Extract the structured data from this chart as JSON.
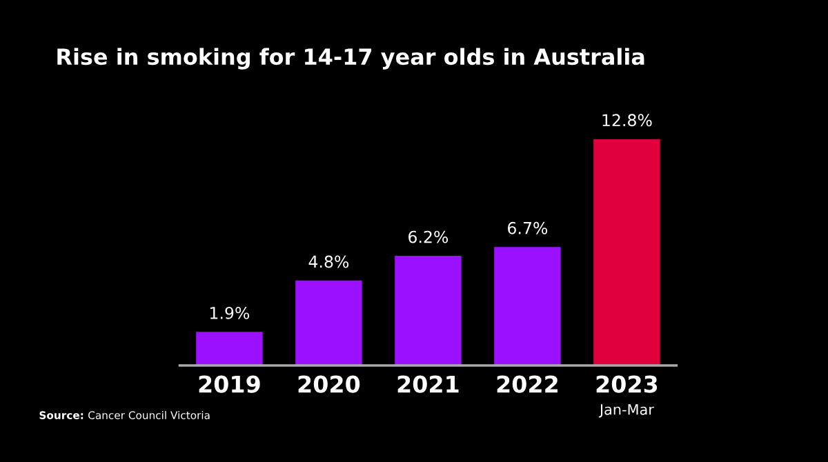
{
  "chart_data": {
    "type": "bar",
    "title": "Rise in smoking for 14-17 year olds in Australia",
    "categories": [
      "2019",
      "2020",
      "2021",
      "2022",
      "2023\nJan-Mar"
    ],
    "values": [
      1.9,
      4.8,
      6.2,
      6.7,
      12.8
    ],
    "value_labels": [
      "1.9%",
      "4.8%",
      "6.2%",
      "6.7%",
      "12.8%"
    ],
    "colors": [
      "#9b10ff",
      "#9b10ff",
      "#9b10ff",
      "#9b10ff",
      "#e0003c"
    ],
    "annotations": [
      "Source: Cancer Council Victoria"
    ],
    "grid": false,
    "legend": false
  }
}
